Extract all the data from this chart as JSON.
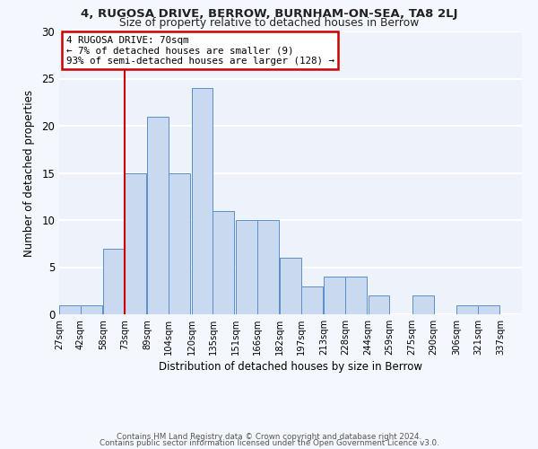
{
  "title1": "4, RUGOSA DRIVE, BERROW, BURNHAM-ON-SEA, TA8 2LJ",
  "title2": "Size of property relative to detached houses in Berrow",
  "xlabel": "Distribution of detached houses by size in Berrow",
  "ylabel": "Number of detached properties",
  "bin_edges": [
    27,
    42,
    58,
    73,
    89,
    104,
    120,
    135,
    151,
    166,
    182,
    197,
    213,
    228,
    244,
    259,
    275,
    290,
    306,
    321,
    337
  ],
  "bar_heights": [
    1,
    1,
    7,
    15,
    21,
    15,
    24,
    11,
    10,
    10,
    6,
    3,
    4,
    4,
    2,
    0,
    2,
    0,
    1,
    1
  ],
  "tick_labels": [
    "27sqm",
    "42sqm",
    "58sqm",
    "73sqm",
    "89sqm",
    "104sqm",
    "120sqm",
    "135sqm",
    "151sqm",
    "166sqm",
    "182sqm",
    "197sqm",
    "213sqm",
    "228sqm",
    "244sqm",
    "259sqm",
    "275sqm",
    "290sqm",
    "306sqm",
    "321sqm",
    "337sqm"
  ],
  "bar_color": "#c9d9f0",
  "bar_edge_color": "#5b8fc9",
  "bg_color": "#eef2fb",
  "grid_color": "#ffffff",
  "fig_bg_color": "#f5f7ff",
  "vline_x": 73,
  "vline_color": "#cc0000",
  "ylim": [
    0,
    30
  ],
  "yticks": [
    0,
    5,
    10,
    15,
    20,
    25,
    30
  ],
  "annotation_title": "4 RUGOSA DRIVE: 70sqm",
  "annotation_line1": "← 7% of detached houses are smaller (9)",
  "annotation_line2": "93% of semi-detached houses are larger (128) →",
  "annotation_box_color": "#cc0000",
  "footer1": "Contains HM Land Registry data © Crown copyright and database right 2024.",
  "footer2": "Contains public sector information licensed under the Open Government Licence v3.0."
}
